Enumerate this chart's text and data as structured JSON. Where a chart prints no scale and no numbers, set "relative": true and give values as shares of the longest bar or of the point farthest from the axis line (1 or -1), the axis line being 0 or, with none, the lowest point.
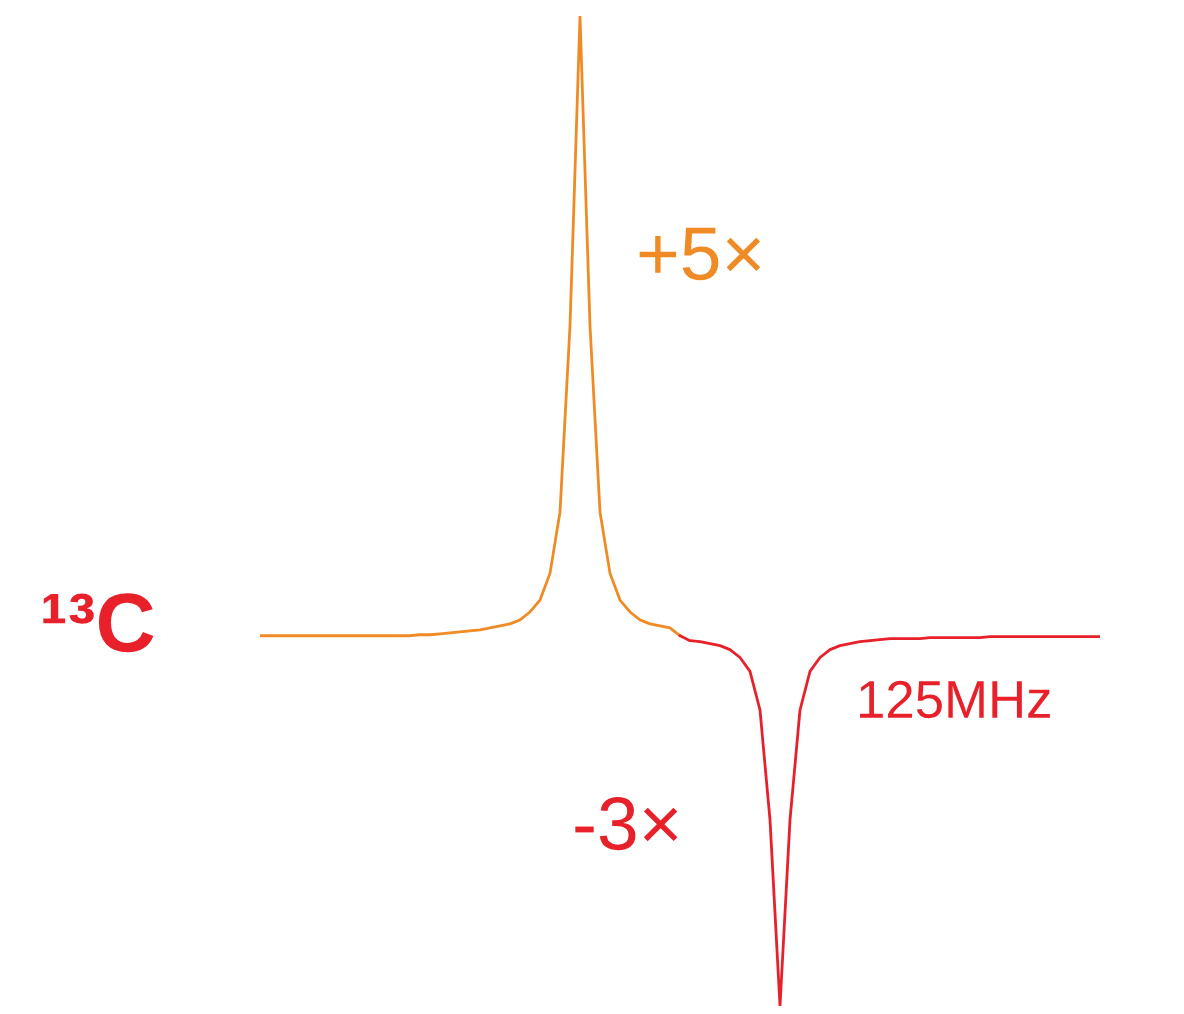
{
  "chart_data": {
    "type": "line",
    "relative": true,
    "line_style": "solid",
    "marker": "none",
    "categories": [
      null,
      null,
      null,
      null,
      null,
      null,
      null,
      null,
      null,
      null,
      null,
      null,
      null,
      null,
      null,
      null,
      null,
      null,
      null,
      null,
      null,
      null,
      null,
      null,
      null,
      null,
      null,
      null,
      null,
      null,
      null,
      null,
      null,
      null,
      null,
      null,
      null,
      null,
      null,
      null,
      null,
      null,
      null,
      null,
      null,
      null,
      null,
      null,
      null,
      null,
      null,
      null,
      null,
      null,
      null,
      null,
      null,
      null,
      null,
      null,
      null,
      null,
      null,
      null,
      null,
      null,
      null,
      null,
      null,
      null,
      null,
      null,
      null,
      null,
      null,
      null,
      null,
      null,
      null,
      null,
      null,
      null,
      null,
      null,
      null
    ],
    "series": [
      {
        "color": "#f08a24",
        "values": [
          0.374,
          0.374,
          0.374,
          0.374,
          0.374,
          0.374,
          0.374,
          0.374,
          0.374,
          0.374,
          0.374,
          0.374,
          0.374,
          0.374,
          0.374,
          0.374,
          0.375,
          0.375,
          0.376,
          0.377,
          0.378,
          0.379,
          0.38,
          0.382,
          0.384,
          0.386,
          0.39,
          0.398,
          0.41,
          0.437,
          0.499,
          0.687,
          1.0,
          0.687,
          0.499,
          0.437,
          0.41,
          0.398,
          0.39,
          0.386,
          0.384,
          0.382,
          0.374,
          null,
          null,
          null,
          null,
          null,
          null,
          null,
          null,
          null,
          null,
          null,
          null,
          null,
          null,
          null,
          null,
          null,
          null,
          null,
          null,
          null,
          null,
          null,
          null,
          null,
          null,
          null,
          null,
          null,
          null,
          null,
          null,
          null,
          null,
          null,
          null,
          null,
          null,
          null,
          null,
          null,
          null
        ]
      },
      {
        "color": "#e8202a",
        "values": [
          null,
          null,
          null,
          null,
          null,
          null,
          null,
          null,
          null,
          null,
          null,
          null,
          null,
          null,
          null,
          null,
          null,
          null,
          null,
          null,
          null,
          null,
          null,
          null,
          null,
          null,
          null,
          null,
          null,
          null,
          null,
          null,
          null,
          null,
          null,
          null,
          null,
          null,
          null,
          null,
          null,
          null,
          0.374,
          0.369,
          0.368,
          0.366,
          0.364,
          0.36,
          0.352,
          0.338,
          0.299,
          0.188,
          0.0,
          0.188,
          0.299,
          0.338,
          0.352,
          0.36,
          0.364,
          0.366,
          0.368,
          0.369,
          0.37,
          0.371,
          0.371,
          0.371,
          0.371,
          0.372,
          0.372,
          0.372,
          0.372,
          0.372,
          0.372,
          0.373,
          0.373,
          0.373,
          0.373,
          0.373,
          0.373,
          0.373,
          0.373,
          0.373,
          0.373,
          0.373,
          0.373
        ]
      }
    ],
    "annotations": [
      "+5×",
      "-3×",
      "¹³C",
      "125MHz"
    ]
  }
}
